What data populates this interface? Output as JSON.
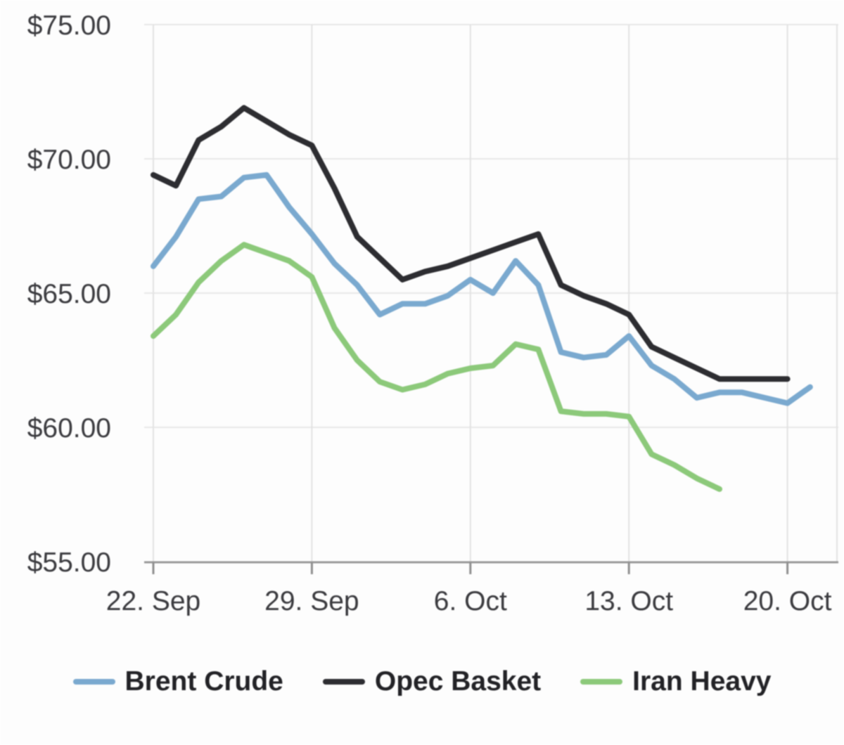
{
  "chart_data": {
    "type": "line",
    "title": "",
    "xlabel": "",
    "ylabel": "",
    "ylim": [
      55,
      75
    ],
    "grid": true,
    "legend_position": "bottom",
    "x": [
      "22. Sep",
      "23. Sep",
      "24. Sep",
      "25. Sep",
      "26. Sep",
      "27. Sep",
      "28. Sep",
      "29. Sep",
      "30. Sep",
      "1. Oct",
      "2. Oct",
      "3. Oct",
      "4. Oct",
      "5. Oct",
      "6. Oct",
      "7. Oct",
      "8. Oct",
      "9. Oct",
      "10. Oct",
      "11. Oct",
      "12. Oct",
      "13. Oct",
      "14. Oct",
      "15. Oct",
      "16. Oct",
      "17. Oct",
      "18. Oct",
      "19. Oct",
      "20. Oct",
      "21. Oct"
    ],
    "x_ticks": [
      {
        "label": "22. Sep",
        "index": 0
      },
      {
        "label": "29. Sep",
        "index": 7
      },
      {
        "label": "6. Oct",
        "index": 14
      },
      {
        "label": "13. Oct",
        "index": 21
      },
      {
        "label": "20. Oct",
        "index": 28
      }
    ],
    "y_ticks": [
      {
        "label": "$75.00",
        "value": 75
      },
      {
        "label": "$70.00",
        "value": 70
      },
      {
        "label": "$65.00",
        "value": 65
      },
      {
        "label": "$60.00",
        "value": 60
      },
      {
        "label": "$55.00",
        "value": 55
      }
    ],
    "series": [
      {
        "name": "Brent Crude",
        "color": "#7aa9cf",
        "values": [
          66.0,
          67.1,
          68.5,
          68.6,
          69.3,
          69.4,
          68.2,
          67.2,
          66.1,
          65.3,
          64.2,
          64.6,
          64.6,
          64.9,
          65.5,
          65.0,
          66.2,
          65.3,
          62.8,
          62.6,
          62.7,
          63.4,
          62.3,
          61.8,
          61.1,
          61.3,
          61.3,
          61.1,
          60.9,
          61.5
        ]
      },
      {
        "name": "Opec Basket",
        "color": "#2d2d31",
        "values": [
          69.4,
          69.0,
          70.7,
          71.2,
          71.9,
          71.4,
          70.9,
          70.5,
          68.9,
          67.1,
          66.3,
          65.5,
          65.8,
          66.0,
          66.3,
          66.6,
          66.9,
          67.2,
          65.3,
          64.9,
          64.6,
          64.2,
          63.0,
          62.6,
          62.2,
          61.8,
          61.8,
          61.8,
          61.8,
          null
        ]
      },
      {
        "name": "Iran Heavy",
        "color": "#8cc97a",
        "values": [
          63.4,
          64.2,
          65.4,
          66.2,
          66.8,
          66.5,
          66.2,
          65.6,
          63.7,
          62.5,
          61.7,
          61.4,
          61.6,
          62.0,
          62.2,
          62.3,
          63.1,
          62.9,
          60.6,
          60.5,
          60.5,
          60.4,
          59.0,
          58.6,
          58.1,
          57.7,
          null,
          null,
          null,
          null
        ]
      }
    ],
    "axis_colors": {
      "axis_line": "#999999",
      "tick": "#8f8f8f",
      "h_gridline": "#e7e7e7",
      "v_gridline": "#e2e2e2",
      "label_text": "#3a3a3e"
    }
  }
}
